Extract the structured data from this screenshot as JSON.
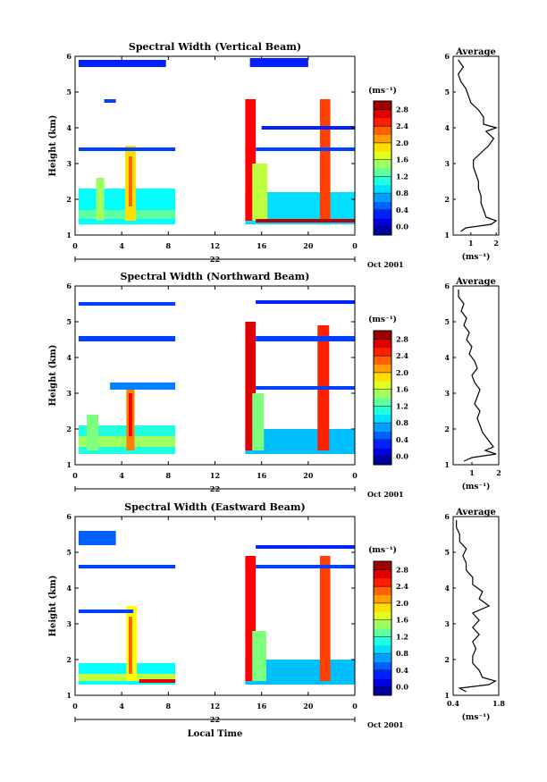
{
  "chart_data": [
    {
      "type": "heatmap",
      "title": "Spectral Width (Vertical Beam)",
      "xlabel": "",
      "ylabel": "Height (km)",
      "x_ticks": [
        "0",
        "4",
        "8",
        "12",
        "16",
        "20",
        "0"
      ],
      "xlim": [
        0,
        24
      ],
      "y_ticks": [
        "1",
        "2",
        "3",
        "4",
        "5",
        "6"
      ],
      "ylim": [
        1,
        6
      ],
      "date_axis": {
        "day_label": "22",
        "month_label": "Oct 2001"
      },
      "colorbar": {
        "unit": "(ms⁻¹)",
        "ticks": [
          "0.0",
          "0.4",
          "0.8",
          "1.2",
          "1.6",
          "2.0",
          "2.4",
          "2.8"
        ],
        "range": [
          -0.2,
          3.0
        ],
        "levels": 16
      },
      "scale": 1.0,
      "regions": [
        {
          "t": [
            0.3,
            8.6
          ],
          "h": [
            1.3,
            2.3
          ],
          "v": 1.0
        },
        {
          "t": [
            0.3,
            8.6
          ],
          "h": [
            1.45,
            1.7
          ],
          "v": 1.3
        },
        {
          "t": [
            1.8,
            2.5
          ],
          "h": [
            1.4,
            2.6
          ],
          "v": 1.5
        },
        {
          "t": [
            4.3,
            5.2
          ],
          "h": [
            1.4,
            3.5
          ],
          "v": 1.9
        },
        {
          "t": [
            4.6,
            4.9
          ],
          "h": [
            1.8,
            3.2
          ],
          "v": 2.3
        },
        {
          "t": [
            0.3,
            8.6
          ],
          "h": [
            3.35,
            3.45
          ],
          "v": 0.4
        },
        {
          "t": [
            2.5,
            3.5
          ],
          "h": [
            4.7,
            4.8
          ],
          "v": 0.4
        },
        {
          "t": [
            0.3,
            7.8
          ],
          "h": [
            5.7,
            5.9
          ],
          "v": 0.3
        },
        {
          "t": [
            14.6,
            24
          ],
          "h": [
            1.3,
            2.2
          ],
          "v": 0.9
        },
        {
          "t": [
            14.6,
            15.5
          ],
          "h": [
            1.4,
            4.8
          ],
          "v": 2.6
        },
        {
          "t": [
            15.2,
            16.5
          ],
          "h": [
            1.4,
            3.0
          ],
          "v": 1.6
        },
        {
          "t": [
            21.0,
            21.9
          ],
          "h": [
            1.4,
            4.8
          ],
          "v": 2.4
        },
        {
          "t": [
            15.5,
            24
          ],
          "h": [
            1.35,
            1.45
          ],
          "v": 2.8
        },
        {
          "t": [
            15.5,
            24
          ],
          "h": [
            3.35,
            3.45
          ],
          "v": 0.4
        },
        {
          "t": [
            16.0,
            24
          ],
          "h": [
            3.95,
            4.05
          ],
          "v": 0.3
        },
        {
          "t": [
            15.0,
            20.0
          ],
          "h": [
            5.7,
            5.95
          ],
          "v": 0.3
        }
      ],
      "average": {
        "title": "Average",
        "xlabel": "(ms⁻¹)",
        "x_ticks": [
          "1",
          "2"
        ],
        "xlim": [
          0.3,
          2.1
        ],
        "heights": [
          1.1,
          1.2,
          1.3,
          1.4,
          1.5,
          1.7,
          1.9,
          2.1,
          2.3,
          2.5,
          2.7,
          2.9,
          3.1,
          3.3,
          3.5,
          3.7,
          3.9,
          4.0,
          4.1,
          4.3,
          4.5,
          4.7,
          4.9,
          5.1,
          5.3,
          5.5,
          5.7,
          5.9
        ],
        "values": [
          0.6,
          0.8,
          1.8,
          2.0,
          1.6,
          1.5,
          1.4,
          1.4,
          1.3,
          1.3,
          1.2,
          1.1,
          1.1,
          1.4,
          1.7,
          1.9,
          1.6,
          2.0,
          1.5,
          1.5,
          1.3,
          1.0,
          0.9,
          0.8,
          0.6,
          0.5,
          0.7,
          0.5
        ]
      }
    },
    {
      "type": "heatmap",
      "title": "Spectral Width (Northward Beam)",
      "xlabel": "",
      "ylabel": "Height (km)",
      "x_ticks": [
        "0",
        "4",
        "8",
        "12",
        "16",
        "20",
        "0"
      ],
      "xlim": [
        0,
        24
      ],
      "y_ticks": [
        "1",
        "2",
        "3",
        "4",
        "5",
        "6"
      ],
      "ylim": [
        1,
        6
      ],
      "date_axis": {
        "day_label": "22",
        "month_label": "Oct 2001"
      },
      "colorbar": {
        "unit": "(ms⁻¹)",
        "ticks": [
          "0.0",
          "0.4",
          "0.8",
          "1.2",
          "1.6",
          "2.0",
          "2.4",
          "2.8"
        ],
        "range": [
          -0.2,
          3.0
        ],
        "levels": 16
      },
      "scale": 1.0,
      "regions": [
        {
          "t": [
            0.3,
            8.6
          ],
          "h": [
            1.3,
            2.1
          ],
          "v": 1.1
        },
        {
          "t": [
            0.3,
            8.6
          ],
          "h": [
            1.5,
            1.8
          ],
          "v": 1.5
        },
        {
          "t": [
            1.0,
            2.0
          ],
          "h": [
            1.4,
            2.4
          ],
          "v": 1.4
        },
        {
          "t": [
            4.4,
            5.1
          ],
          "h": [
            1.4,
            3.3
          ],
          "v": 2.2
        },
        {
          "t": [
            4.6,
            4.9
          ],
          "h": [
            1.8,
            3.0
          ],
          "v": 2.6
        },
        {
          "t": [
            3.0,
            8.6
          ],
          "h": [
            3.1,
            3.3
          ],
          "v": 0.6
        },
        {
          "t": [
            0.3,
            8.6
          ],
          "h": [
            4.45,
            4.6
          ],
          "v": 0.4
        },
        {
          "t": [
            0.3,
            8.6
          ],
          "h": [
            5.45,
            5.55
          ],
          "v": 0.4
        },
        {
          "t": [
            14.6,
            24
          ],
          "h": [
            1.3,
            2.0
          ],
          "v": 0.8
        },
        {
          "t": [
            14.6,
            15.5
          ],
          "h": [
            1.4,
            5.0
          ],
          "v": 2.7
        },
        {
          "t": [
            15.2,
            16.2
          ],
          "h": [
            1.4,
            3.0
          ],
          "v": 1.4
        },
        {
          "t": [
            20.8,
            21.8
          ],
          "h": [
            1.4,
            4.9
          ],
          "v": 2.5
        },
        {
          "t": [
            15.5,
            24
          ],
          "h": [
            4.45,
            4.6
          ],
          "v": 0.4
        },
        {
          "t": [
            15.5,
            24
          ],
          "h": [
            3.1,
            3.2
          ],
          "v": 0.4
        },
        {
          "t": [
            15.5,
            24
          ],
          "h": [
            5.5,
            5.6
          ],
          "v": 0.3
        }
      ],
      "average": {
        "title": "Average",
        "xlabel": "(ms⁻¹)",
        "x_ticks": [
          "1",
          "2"
        ],
        "xlim": [
          0.3,
          2.0
        ],
        "heights": [
          1.1,
          1.2,
          1.3,
          1.4,
          1.5,
          1.7,
          1.9,
          2.1,
          2.3,
          2.5,
          2.7,
          2.9,
          3.1,
          3.3,
          3.5,
          3.7,
          3.9,
          4.1,
          4.3,
          4.5,
          4.7,
          4.9,
          5.1,
          5.3,
          5.5,
          5.7,
          5.9
        ],
        "values": [
          0.7,
          1.0,
          1.9,
          1.5,
          1.8,
          1.6,
          1.4,
          1.3,
          1.2,
          1.3,
          1.1,
          1.2,
          1.3,
          1.1,
          1.0,
          1.2,
          1.1,
          0.9,
          1.0,
          0.8,
          0.9,
          0.7,
          0.8,
          0.6,
          0.7,
          0.5,
          0.5
        ]
      }
    },
    {
      "type": "heatmap",
      "title": "Spectral Width (Eastward Beam)",
      "xlabel": "Local Time",
      "ylabel": "Height (km)",
      "x_ticks": [
        "0",
        "4",
        "8",
        "12",
        "16",
        "20",
        "0"
      ],
      "xlim": [
        0,
        24
      ],
      "y_ticks": [
        "1",
        "2",
        "3",
        "4",
        "5",
        "6"
      ],
      "ylim": [
        1,
        6
      ],
      "date_axis": {
        "day_label": "22",
        "month_label": "Oct 2001"
      },
      "colorbar": {
        "unit": "(ms⁻¹)",
        "ticks": [
          "0.0",
          "0.4",
          "0.8",
          "1.2",
          "1.6",
          "2.0",
          "2.4",
          "2.8"
        ],
        "range": [
          -0.2,
          3.0
        ],
        "levels": 16
      },
      "scale": 1.0,
      "regions": [
        {
          "t": [
            0.3,
            8.6
          ],
          "h": [
            1.3,
            1.9
          ],
          "v": 1.0
        },
        {
          "t": [
            0.3,
            8.6
          ],
          "h": [
            1.4,
            1.6
          ],
          "v": 1.6
        },
        {
          "t": [
            4.4,
            5.3
          ],
          "h": [
            1.4,
            3.5
          ],
          "v": 1.8
        },
        {
          "t": [
            4.6,
            4.9
          ],
          "h": [
            1.6,
            3.2
          ],
          "v": 2.3
        },
        {
          "t": [
            5.5,
            8.6
          ],
          "h": [
            1.35,
            1.45
          ],
          "v": 2.7
        },
        {
          "t": [
            0.3,
            5.0
          ],
          "h": [
            3.3,
            3.4
          ],
          "v": 0.4
        },
        {
          "t": [
            0.3,
            8.6
          ],
          "h": [
            4.55,
            4.65
          ],
          "v": 0.4
        },
        {
          "t": [
            0.3,
            3.5
          ],
          "h": [
            5.2,
            5.6
          ],
          "v": 0.5
        },
        {
          "t": [
            14.6,
            24
          ],
          "h": [
            1.3,
            2.0
          ],
          "v": 0.8
        },
        {
          "t": [
            14.6,
            15.5
          ],
          "h": [
            1.4,
            4.9
          ],
          "v": 2.6
        },
        {
          "t": [
            15.2,
            16.4
          ],
          "h": [
            1.4,
            2.8
          ],
          "v": 1.4
        },
        {
          "t": [
            21.0,
            21.9
          ],
          "h": [
            1.4,
            4.9
          ],
          "v": 2.4
        },
        {
          "t": [
            15.5,
            24
          ],
          "h": [
            4.55,
            4.65
          ],
          "v": 0.4
        },
        {
          "t": [
            15.5,
            24
          ],
          "h": [
            5.1,
            5.2
          ],
          "v": 0.3
        }
      ],
      "average": {
        "title": "Average",
        "xlabel": "(ms⁻¹)",
        "x_ticks": [
          "0.4",
          "1.8"
        ],
        "xlim": [
          0.4,
          1.8
        ],
        "heights": [
          1.1,
          1.2,
          1.3,
          1.4,
          1.5,
          1.7,
          1.9,
          2.1,
          2.3,
          2.5,
          2.7,
          2.9,
          3.1,
          3.3,
          3.5,
          3.7,
          3.9,
          4.1,
          4.3,
          4.5,
          4.7,
          4.9,
          5.1,
          5.3,
          5.5,
          5.7,
          5.9
        ],
        "values": [
          0.8,
          0.6,
          1.5,
          1.7,
          1.3,
          1.2,
          1.0,
          1.0,
          1.1,
          1.0,
          1.2,
          1.0,
          1.2,
          1.0,
          1.5,
          1.2,
          1.3,
          1.0,
          1.0,
          0.8,
          0.8,
          0.7,
          0.8,
          0.6,
          0.6,
          0.5,
          0.5
        ]
      }
    }
  ]
}
